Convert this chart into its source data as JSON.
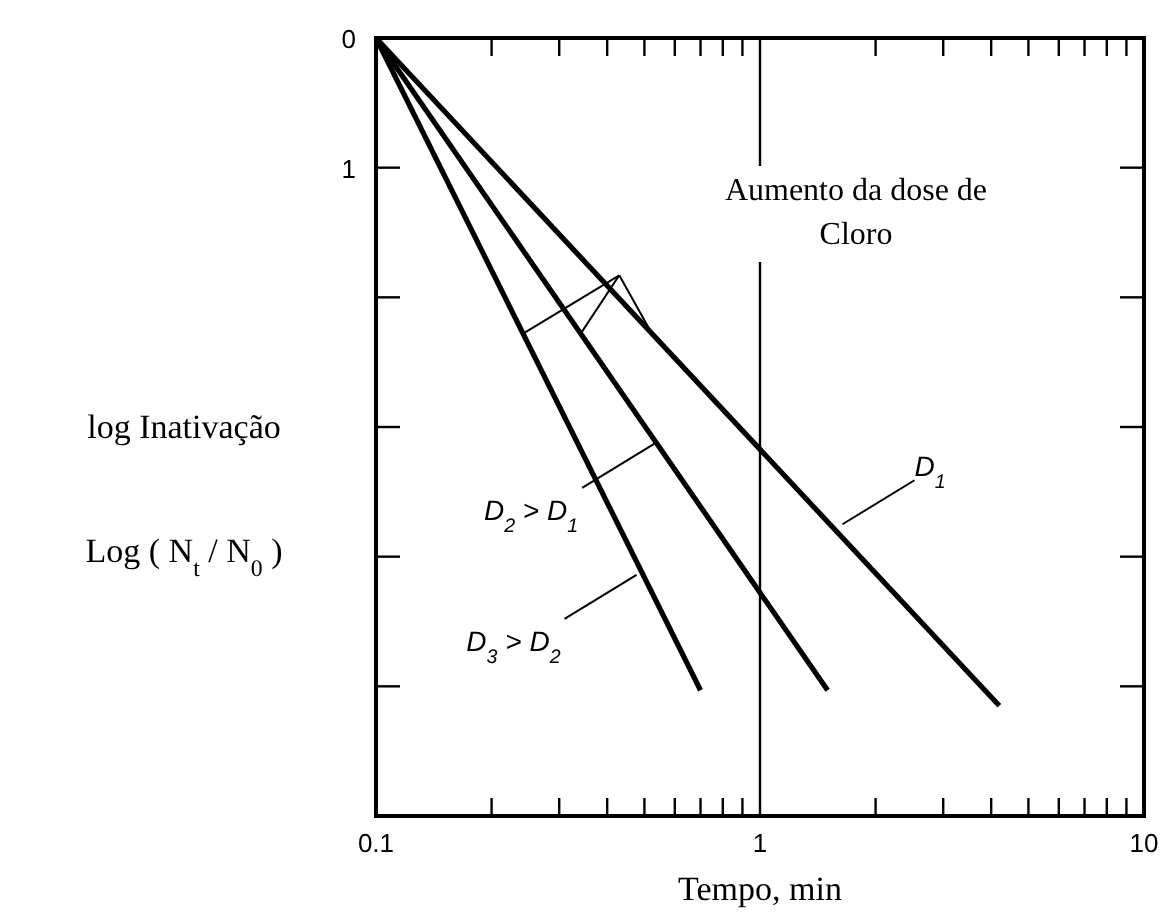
{
  "chart_data": {
    "type": "line",
    "xlabel": "Tempo, min",
    "ylabel": "log Inativação\nLog ( N$_{t}$ / N$_{0}$ )",
    "log": "x",
    "xlim": [
      0.1,
      10
    ],
    "ylim": [
      6,
      0
    ],
    "xticks": [
      {
        "value": 0.1,
        "label": "0.1"
      },
      {
        "value": 0.2,
        "label": null
      },
      {
        "value": 0.3,
        "label": null
      },
      {
        "value": 0.4,
        "label": null
      },
      {
        "value": 0.5,
        "label": null
      },
      {
        "value": 0.6,
        "label": null
      },
      {
        "value": 0.7,
        "label": null
      },
      {
        "value": 0.8,
        "label": null
      },
      {
        "value": 0.9,
        "label": null
      },
      1,
      {
        "value": 2,
        "label": null
      },
      {
        "value": 3,
        "label": null
      },
      {
        "value": 4,
        "label": null
      },
      {
        "value": 5,
        "label": null
      },
      {
        "value": 6,
        "label": null
      },
      {
        "value": 7,
        "label": null
      },
      {
        "value": 8,
        "label": null
      },
      {
        "value": 9,
        "label": null
      },
      10
    ],
    "yticks": [
      0,
      1,
      {
        "value": 2,
        "label": null
      },
      {
        "value": 3,
        "label": null
      },
      {
        "value": 4,
        "label": null
      },
      {
        "value": 5,
        "label": null
      }
    ],
    "series": [
      {
        "color": "#000000",
        "x": [
          0.1,
          4.2
        ],
        "values": [
          0,
          5.15
        ]
      },
      {
        "color": "#000000",
        "x": [
          0.1,
          1.5
        ],
        "values": [
          0,
          5.03
        ]
      },
      {
        "color": "#000000",
        "x": [
          0.1,
          0.7
        ],
        "values": [
          0,
          5.03
        ]
      }
    ],
    "ref_lines": [
      {
        "axis": "x",
        "value": 1,
        "color": "#000000"
      }
    ],
    "annotations": [
      "Aumento da dose de\nCloro",
      {
        "text": "D$_{1}$",
        "x": 1.64,
        "y": 3.75
      },
      {
        "text": "D$_{2}$ > D$_{1}$",
        "x": 0.53,
        "y": 3.13
      },
      {
        "text": "D$_{3}$ > D$_{2}$",
        "x": 0.477,
        "y": 4.14
      }
    ]
  }
}
